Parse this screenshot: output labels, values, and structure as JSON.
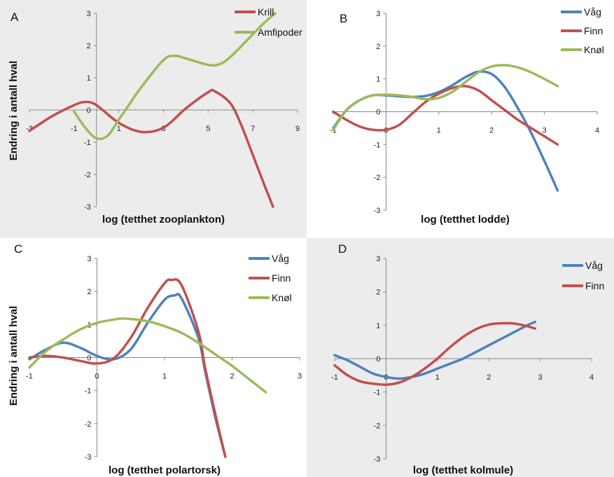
{
  "chart_data": [
    {
      "panel": "A",
      "type": "line",
      "xlabel": "log (tetthet zooplankton)",
      "ylabel": "Endring i antall hval",
      "xlim": [
        -3,
        9
      ],
      "ylim": [
        -3,
        3
      ],
      "xticks": [
        -3,
        -1,
        1,
        3,
        5,
        7,
        9
      ],
      "yticks": [
        -3,
        -2,
        -1,
        0,
        1,
        2,
        3
      ],
      "legend_position": "top-right",
      "series": [
        {
          "name": "Krill",
          "color": "#c0504d",
          "x": [
            -3,
            -2,
            -1,
            -0.5,
            0,
            1,
            2,
            3,
            4,
            5,
            5.3,
            6,
            6.5,
            7,
            7.5,
            7.9
          ],
          "y": [
            -0.65,
            -0.2,
            0.15,
            0.25,
            0.15,
            -0.4,
            -0.68,
            -0.55,
            0.05,
            0.55,
            0.58,
            0.2,
            -0.5,
            -1.4,
            -2.3,
            -3.0
          ]
        },
        {
          "name": "Amfipoder",
          "color": "#9bbb59",
          "x": [
            -1,
            -0.5,
            0,
            0.5,
            1,
            1.5,
            2,
            3,
            3.5,
            4,
            5,
            5.5,
            6,
            7,
            7.5,
            8
          ],
          "y": [
            -0.05,
            -0.55,
            -0.88,
            -0.8,
            -0.3,
            0.2,
            0.7,
            1.55,
            1.68,
            1.6,
            1.4,
            1.42,
            1.65,
            2.35,
            2.7,
            3.0
          ]
        }
      ]
    },
    {
      "panel": "B",
      "type": "line",
      "xlabel": "log (tetthet lodde)",
      "ylabel": "",
      "xlim": [
        -1,
        4
      ],
      "ylim": [
        -3,
        3
      ],
      "xticks": [
        -1,
        0,
        1,
        2,
        3,
        4
      ],
      "yticks": [
        -3,
        -2,
        -1,
        0,
        1,
        2,
        3
      ],
      "legend_position": "top-right",
      "series": [
        {
          "name": "Våg",
          "color": "#4f81bd",
          "x": [
            -1,
            -0.75,
            -0.5,
            -0.25,
            0,
            0.25,
            0.5,
            0.75,
            1,
            1.25,
            1.5,
            1.75,
            2,
            2.25,
            2.5,
            2.75,
            3,
            3.25
          ],
          "y": [
            -0.5,
            0.05,
            0.35,
            0.5,
            0.5,
            0.47,
            0.45,
            0.48,
            0.6,
            0.8,
            1.05,
            1.22,
            1.15,
            0.75,
            0.1,
            -0.65,
            -1.5,
            -2.4
          ]
        },
        {
          "name": "Finn",
          "color": "#c0504d",
          "x": [
            -1,
            -0.75,
            -0.5,
            -0.25,
            0,
            0.25,
            0.5,
            0.75,
            1,
            1.25,
            1.5,
            1.75,
            2,
            2.25,
            2.5,
            2.75,
            3,
            3.25
          ],
          "y": [
            0,
            -0.25,
            -0.45,
            -0.55,
            -0.55,
            -0.4,
            -0.05,
            0.3,
            0.55,
            0.72,
            0.78,
            0.65,
            0.35,
            0.05,
            -0.25,
            -0.5,
            -0.75,
            -1.0
          ]
        },
        {
          "name": "Knøl",
          "color": "#9bbb59",
          "x": [
            -1,
            -0.75,
            -0.5,
            -0.25,
            0,
            0.25,
            0.5,
            0.75,
            1,
            1.25,
            1.5,
            1.75,
            2,
            2.25,
            2.5,
            2.75,
            3,
            3.25
          ],
          "y": [
            -0.55,
            0.05,
            0.35,
            0.5,
            0.52,
            0.5,
            0.45,
            0.38,
            0.42,
            0.6,
            0.9,
            1.2,
            1.38,
            1.42,
            1.35,
            1.2,
            1.0,
            0.78
          ]
        }
      ]
    },
    {
      "panel": "C",
      "type": "line",
      "xlabel": "log (tetthet polartorsk)",
      "ylabel": "Endring i antall hval",
      "xlim": [
        -1,
        3
      ],
      "ylim": [
        -3,
        3
      ],
      "xticks": [
        -1,
        0,
        1,
        2,
        3
      ],
      "yticks": [
        -3,
        -2,
        -1,
        0,
        1,
        2,
        3
      ],
      "legend_position": "top-right",
      "series": [
        {
          "name": "Våg",
          "color": "#4f81bd",
          "x": [
            -1,
            -0.75,
            -0.5,
            -0.25,
            0,
            0.25,
            0.5,
            0.75,
            1,
            1.15,
            1.25,
            1.5,
            1.6,
            1.75,
            1.9
          ],
          "y": [
            -0.05,
            0.25,
            0.45,
            0.3,
            0.05,
            -0.05,
            0.25,
            1.05,
            1.75,
            1.88,
            1.8,
            0.6,
            -0.4,
            -1.8,
            -3.0
          ]
        },
        {
          "name": "Finn",
          "color": "#c0504d",
          "x": [
            -1,
            -0.75,
            -0.5,
            -0.25,
            0,
            0.25,
            0.5,
            0.75,
            1,
            1.1,
            1.25,
            1.5,
            1.6,
            1.75,
            1.9
          ],
          "y": [
            0,
            0.05,
            0.0,
            -0.1,
            -0.18,
            -0.02,
            0.6,
            1.5,
            2.25,
            2.35,
            2.2,
            0.8,
            -0.3,
            -1.7,
            -3.0
          ]
        },
        {
          "name": "Knøl",
          "color": "#9bbb59",
          "x": [
            -1,
            -0.75,
            -0.5,
            -0.25,
            0,
            0.25,
            0.4,
            0.75,
            1,
            1.25,
            1.5,
            1.75,
            2,
            2.25,
            2.5
          ],
          "y": [
            -0.3,
            0.2,
            0.55,
            0.85,
            1.05,
            1.15,
            1.18,
            1.1,
            0.95,
            0.75,
            0.45,
            0.1,
            -0.25,
            -0.65,
            -1.05
          ]
        }
      ]
    },
    {
      "panel": "D",
      "type": "line",
      "xlabel": "log (tetthet kolmule)",
      "ylabel": "",
      "xlim": [
        -1,
        4
      ],
      "ylim": [
        -3,
        3
      ],
      "xticks": [
        -1,
        0,
        1,
        2,
        3,
        4
      ],
      "yticks": [
        -3,
        -2,
        -1,
        0,
        1,
        2,
        3
      ],
      "legend_position": "top-right",
      "series": [
        {
          "name": "Våg",
          "color": "#4f81bd",
          "x": [
            -1,
            -0.75,
            -0.5,
            -0.25,
            0,
            0.25,
            0.5,
            0.75,
            1,
            1.25,
            1.5,
            1.75,
            2,
            2.25,
            2.5,
            2.75,
            2.9
          ],
          "y": [
            0.1,
            -0.05,
            -0.25,
            -0.45,
            -0.55,
            -0.6,
            -0.55,
            -0.45,
            -0.3,
            -0.15,
            0.0,
            0.2,
            0.4,
            0.6,
            0.8,
            1.0,
            1.1
          ]
        },
        {
          "name": "Finn",
          "color": "#c0504d",
          "x": [
            -1,
            -0.75,
            -0.5,
            -0.25,
            0,
            0.25,
            0.5,
            0.75,
            1,
            1.25,
            1.5,
            1.75,
            2,
            2.25,
            2.5,
            2.75,
            2.9
          ],
          "y": [
            -0.2,
            -0.5,
            -0.68,
            -0.75,
            -0.78,
            -0.72,
            -0.55,
            -0.3,
            0.0,
            0.35,
            0.65,
            0.88,
            1.02,
            1.06,
            1.05,
            0.97,
            0.9
          ]
        }
      ]
    }
  ]
}
